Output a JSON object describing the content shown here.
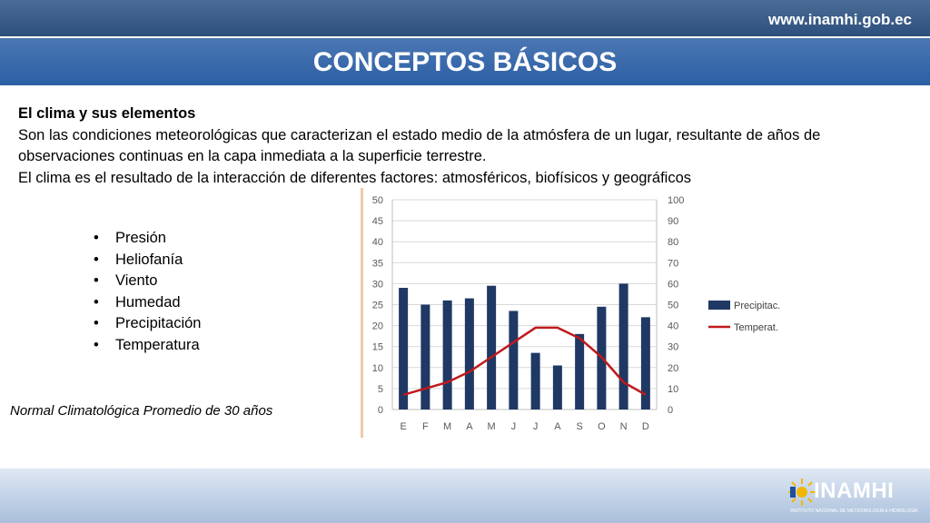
{
  "header": {
    "url": "www.inamhi.gob.ec",
    "title": "CONCEPTOS BÁSICOS"
  },
  "content": {
    "subheading": "El clima y sus elementos",
    "paragraph_1": "Son las condiciones meteorológicas que caracterizan el estado medio de la atmósfera de un lugar, resultante de años de observaciones continuas en la capa inmediata a la superficie terrestre.",
    "paragraph_2": "El clima es el resultado de la interacción de diferentes factores: atmosféricos, biofísicos y geográficos",
    "bullets": [
      "Presión",
      "Heliofanía",
      "Viento",
      "Humedad",
      "Precipitación",
      "Temperatura"
    ],
    "caption": "Normal Climatológica Promedio de 30 años"
  },
  "chart_data": {
    "type": "bar",
    "categories": [
      "E",
      "F",
      "M",
      "A",
      "M",
      "J",
      "J",
      "A",
      "S",
      "O",
      "N",
      "D"
    ],
    "series": [
      {
        "name": "Precipitac.",
        "type": "bar",
        "axis": "left",
        "color": "#1f3864",
        "values": [
          29,
          25,
          26,
          26.5,
          29.5,
          23.5,
          13.5,
          10.5,
          18,
          24.5,
          30,
          22
        ]
      },
      {
        "name": "Temperat.",
        "type": "line",
        "axis": "right",
        "color": "#c0191c",
        "values": [
          7,
          10,
          13,
          18,
          25,
          32,
          39,
          39,
          34,
          25,
          13,
          7
        ]
      }
    ],
    "ylim_left": [
      0,
      50
    ],
    "ylim_right": [
      0,
      100
    ],
    "yticks_left": [
      "0",
      "5",
      "10",
      "15",
      "20",
      "25",
      "30",
      "35",
      "40",
      "45",
      "50"
    ],
    "yticks_right": [
      "0",
      "10",
      "20",
      "30",
      "40",
      "50",
      "60",
      "70",
      "80",
      "90",
      "100"
    ],
    "grid": true,
    "legend_position": "right"
  },
  "footer": {
    "logo_text": "INAMHI",
    "logo_subtext": "INSTITUTO NACIONAL DE METEOROLOGÍA E HIDROLOGÍA"
  }
}
